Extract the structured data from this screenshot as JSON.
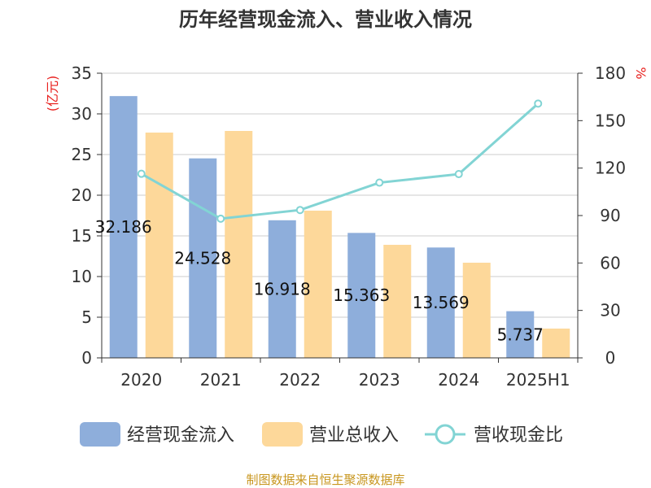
{
  "chart_data": {
    "type": "bar",
    "title": "历年经营现金流入、营业收入情况",
    "categories": [
      "2020",
      "2021",
      "2022",
      "2023",
      "2024",
      "2025H1"
    ],
    "y_left": {
      "unit": "(亿元)",
      "range": [
        0,
        35
      ],
      "ticks": [
        0,
        5,
        10,
        15,
        20,
        25,
        30,
        35
      ]
    },
    "y_right": {
      "unit": "%",
      "range": [
        0,
        180
      ],
      "ticks": [
        0,
        30,
        60,
        90,
        120,
        150,
        180
      ]
    },
    "series": [
      {
        "name": "经营现金流入",
        "type": "bar",
        "axis": "left",
        "color": "#8eaedb",
        "values": [
          32.186,
          24.528,
          16.918,
          15.363,
          13.569,
          5.737
        ],
        "data_labels": [
          "32.186",
          "24.528",
          "16.918",
          "15.363",
          "13.569",
          "5.737"
        ]
      },
      {
        "name": "营业总收入",
        "type": "bar",
        "axis": "left",
        "color": "#fdd89a",
        "values": [
          27.7,
          27.9,
          18.1,
          13.9,
          11.7,
          3.6
        ]
      },
      {
        "name": "营收现金比",
        "type": "line",
        "axis": "right",
        "color": "#82d4d4",
        "values": [
          116.4,
          88.0,
          93.5,
          110.8,
          116.2,
          160.8
        ]
      }
    ],
    "grid": true,
    "legend": "bottom"
  },
  "source": "制图数据来自恒生聚源数据库"
}
